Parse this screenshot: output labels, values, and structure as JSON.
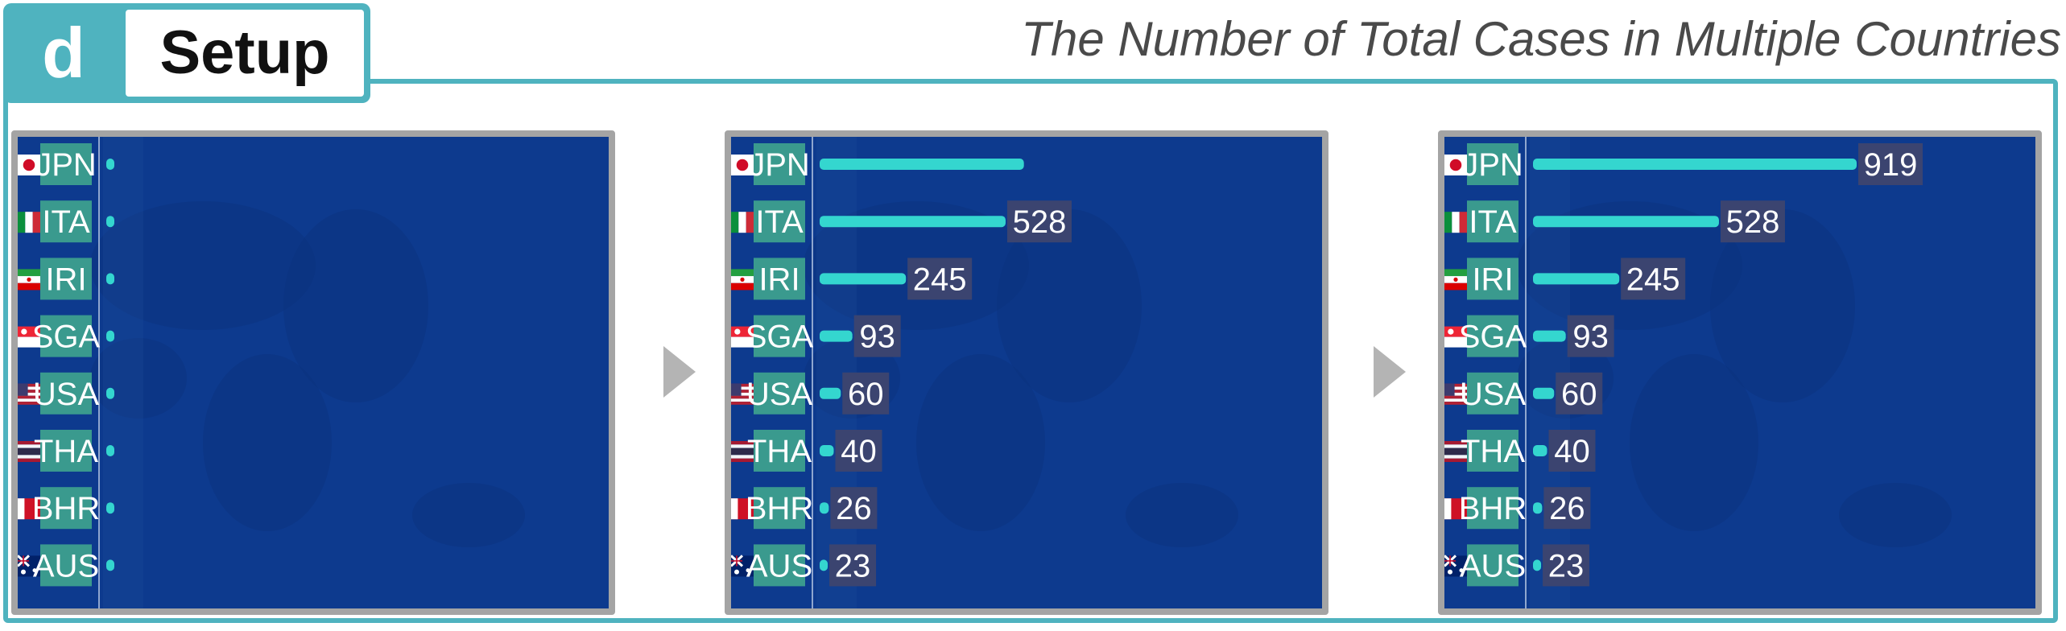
{
  "tag": {
    "letter": "d",
    "label": "Setup"
  },
  "title": "The Number of Total Cases in Multiple Countries",
  "colors": {
    "frame": "#4fb3bf",
    "panel_bg": "#0d3a8e",
    "label_bg": "#3a9a8e",
    "bar": "#34d6cf",
    "value_bg": "#3b4470"
  },
  "chart_data": [
    {
      "type": "bar",
      "orientation": "horizontal",
      "categories": [
        "JPN",
        "ITA",
        "IRI",
        "SGA",
        "USA",
        "THA",
        "BHR",
        "AUS"
      ],
      "values": [
        0,
        0,
        0,
        0,
        0,
        0,
        0,
        0
      ],
      "show_values": [
        false,
        false,
        false,
        false,
        false,
        false,
        false,
        false
      ],
      "xlim": [
        0,
        919
      ]
    },
    {
      "type": "bar",
      "orientation": "horizontal",
      "categories": [
        "JPN",
        "ITA",
        "IRI",
        "SGA",
        "USA",
        "THA",
        "BHR",
        "AUS"
      ],
      "values": [
        580,
        528,
        245,
        93,
        60,
        40,
        26,
        23
      ],
      "show_values": [
        false,
        true,
        true,
        true,
        true,
        true,
        true,
        true
      ],
      "xlim": [
        0,
        919
      ]
    },
    {
      "type": "bar",
      "orientation": "horizontal",
      "categories": [
        "JPN",
        "ITA",
        "IRI",
        "SGA",
        "USA",
        "THA",
        "BHR",
        "AUS"
      ],
      "values": [
        919,
        528,
        245,
        93,
        60,
        40,
        26,
        23
      ],
      "show_values": [
        true,
        true,
        true,
        true,
        true,
        true,
        true,
        true
      ],
      "xlim": [
        0,
        919
      ]
    }
  ]
}
